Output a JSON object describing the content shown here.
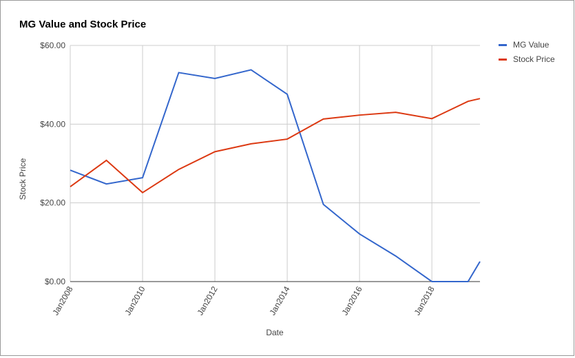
{
  "chart_data": {
    "type": "line",
    "title": "MG Value and Stock Price",
    "x_label": "Date",
    "y_label": "Stock Price",
    "x": [
      2008,
      2009,
      2010,
      2011,
      2012,
      2013,
      2014,
      2015,
      2016,
      2017,
      2018,
      2019,
      2019.33
    ],
    "series": [
      {
        "name": "MG Value",
        "color": "#3366cc",
        "values": [
          28.3,
          24.8,
          26.4,
          53.1,
          51.6,
          53.8,
          47.6,
          19.6,
          12.1,
          6.5,
          0,
          0,
          5.1
        ]
      },
      {
        "name": "Stock Price",
        "color": "#dc3912",
        "values": [
          24.1,
          30.8,
          22.6,
          28.5,
          33.0,
          35.0,
          36.2,
          41.3,
          42.3,
          43.0,
          41.4,
          45.8,
          46.5
        ]
      }
    ],
    "xlim": [
      2008,
      2019.33
    ],
    "xticks": [
      {
        "value": 2008,
        "label": "Jan2008"
      },
      {
        "value": 2010,
        "label": "Jan2010"
      },
      {
        "value": 2012,
        "label": "Jan2012"
      },
      {
        "value": 2014,
        "label": "Jan2014"
      },
      {
        "value": 2016,
        "label": "Jan2016"
      },
      {
        "value": 2018,
        "label": "Jan2018"
      }
    ],
    "ylim": [
      0,
      60
    ],
    "yticks": [
      {
        "value": 0,
        "label": "$0.00"
      },
      {
        "value": 20,
        "label": "$20.00"
      },
      {
        "value": 40,
        "label": "$40.00"
      },
      {
        "value": 60,
        "label": "$60.00"
      }
    ],
    "grid": true,
    "legend_position": "right"
  }
}
